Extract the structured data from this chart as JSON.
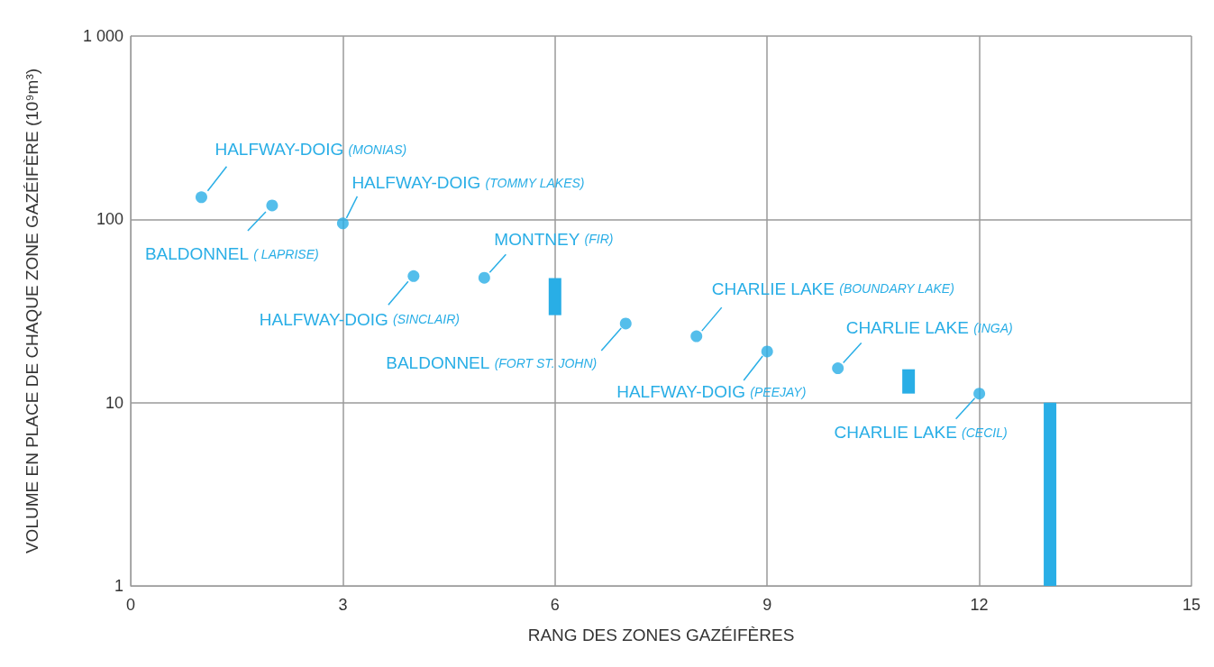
{
  "chart_data": {
    "type": "scatter",
    "xlabel": "RANG DES ZONES GAZÉIFÈRES",
    "ylabel": "VOLUME EN PLACE DE CHAQUE ZONE GAZÉIFÈRE (10⁹m³)",
    "xlim": [
      0,
      15
    ],
    "xticks": [
      0,
      3,
      6,
      9,
      12,
      15
    ],
    "ylim": [
      1,
      1000
    ],
    "yticks": [
      1,
      10,
      100,
      {
        "value": 1000,
        "label": "1 000"
      }
    ],
    "log": "y",
    "grid": true,
    "marker": "circle",
    "series": [
      {
        "color": "#29aee6",
        "x": [
          1,
          2,
          3,
          4,
          5,
          7,
          8,
          9,
          10,
          12
        ],
        "values": [
          132,
          119,
          95,
          49,
          48,
          27,
          23,
          19,
          15.4,
          11.2
        ]
      },
      {
        "type": "bar",
        "color": "#29aee6",
        "x": [
          6,
          11,
          13
        ],
        "base": [
          30,
          11.2,
          1
        ],
        "values": [
          17.8,
          4,
          9
        ]
      }
    ],
    "annotations": [
      {
        "text": "HALFWAY-DOIG (MONIAS)",
        "x": 1,
        "y": 132
      },
      {
        "text": "BALDONNEL ( LAPRISE)",
        "x": 2,
        "y": 119
      },
      {
        "text": "HALFWAY-DOIG (TOMMY LAKES)",
        "x": 3,
        "y": 95
      },
      {
        "text": "HALFWAY-DOIG (SINCLAIR)",
        "x": 4,
        "y": 49
      },
      {
        "text": "MONTNEY (FIR)",
        "x": 5,
        "y": 48
      },
      {
        "text": "BALDONNEL (FORT ST. JOHN)",
        "x": 7,
        "y": 27
      },
      {
        "text": "CHARLIE LAKE (BOUNDARY LAKE)",
        "x": 8,
        "y": 23
      },
      {
        "text": "HALFWAY-DOIG (PEEJAY)",
        "x": 9,
        "y": 19
      },
      {
        "text": "CHARLIE LAKE (INGA)",
        "x": 10,
        "y": 15.4
      },
      {
        "text": "CHARLIE LAKE (CECIL)",
        "x": 12,
        "y": 11.2
      }
    ]
  }
}
